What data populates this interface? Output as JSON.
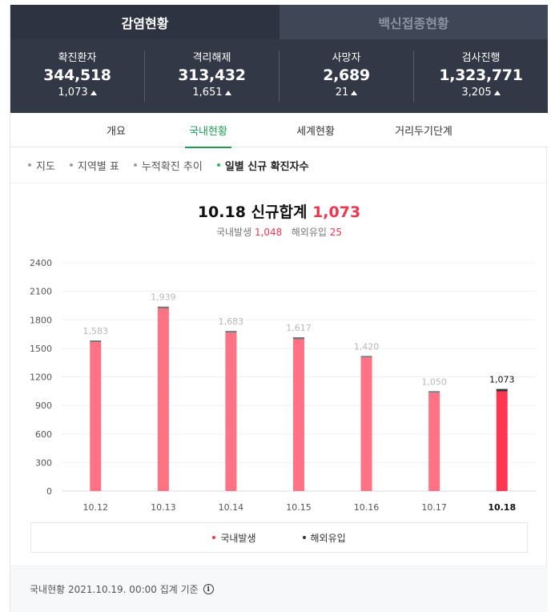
{
  "tabs": [
    {
      "label": "감염현황",
      "active": true
    },
    {
      "label": "백신접종현황",
      "active": false
    }
  ],
  "stats": [
    {
      "label": "확진환자",
      "value": "344,518",
      "delta": "1,073"
    },
    {
      "label": "격리해제",
      "value": "313,432",
      "delta": "1,651"
    },
    {
      "label": "사망자",
      "value": "2,689",
      "delta": "21"
    },
    {
      "label": "검사진행",
      "value": "1,323,771",
      "delta": "3,205"
    }
  ],
  "subtabs": [
    {
      "label": "개요",
      "active": false
    },
    {
      "label": "국내현황",
      "active": true
    },
    {
      "label": "세계현황",
      "active": false
    },
    {
      "label": "거리두기단계",
      "active": false
    }
  ],
  "filters": [
    {
      "label": "지도",
      "active": false
    },
    {
      "label": "지역별 표",
      "active": false
    },
    {
      "label": "누적확진 추이",
      "active": false
    },
    {
      "label": "일별 신규 확진자수",
      "active": true
    }
  ],
  "summary": {
    "title_prefix": "10.18 신규합계",
    "total": "1,073",
    "domestic_label": "국내발생",
    "domestic_value": "1,048",
    "imported_label": "해외유입",
    "imported_value": "25"
  },
  "chart_data": {
    "type": "bar",
    "stacked": true,
    "categories": [
      "10.12",
      "10.13",
      "10.14",
      "10.15",
      "10.16",
      "10.17",
      "10.18"
    ],
    "totals": [
      1583,
      1939,
      1683,
      1617,
      1420,
      1050,
      1073
    ],
    "total_labels": [
      "1,583",
      "1,939",
      "1,683",
      "1,617",
      "1,420",
      "1,050",
      "1,073"
    ],
    "series": [
      {
        "name": "국내발생",
        "values": [
          1566,
          1920,
          1665,
          1596,
          1404,
          1034,
          1048
        ],
        "color": "#ff7185",
        "highlight_color": "#ff3651"
      },
      {
        "name": "해외유입",
        "values": [
          17,
          19,
          18,
          21,
          16,
          16,
          25
        ],
        "color": "#777777",
        "highlight_color": "#333333"
      }
    ],
    "highlight_index": 6,
    "yticks": [
      0,
      300,
      600,
      900,
      1200,
      1500,
      1800,
      2100,
      2400
    ],
    "ylim": [
      0,
      2400
    ],
    "grid": true,
    "legend": "bottom",
    "legend_dot_colors": [
      "#f0364f",
      "#333333"
    ]
  },
  "footer": {
    "text": "국내현황 2021.10.19. 00:00 집계 기준",
    "icon": "info-icon"
  }
}
